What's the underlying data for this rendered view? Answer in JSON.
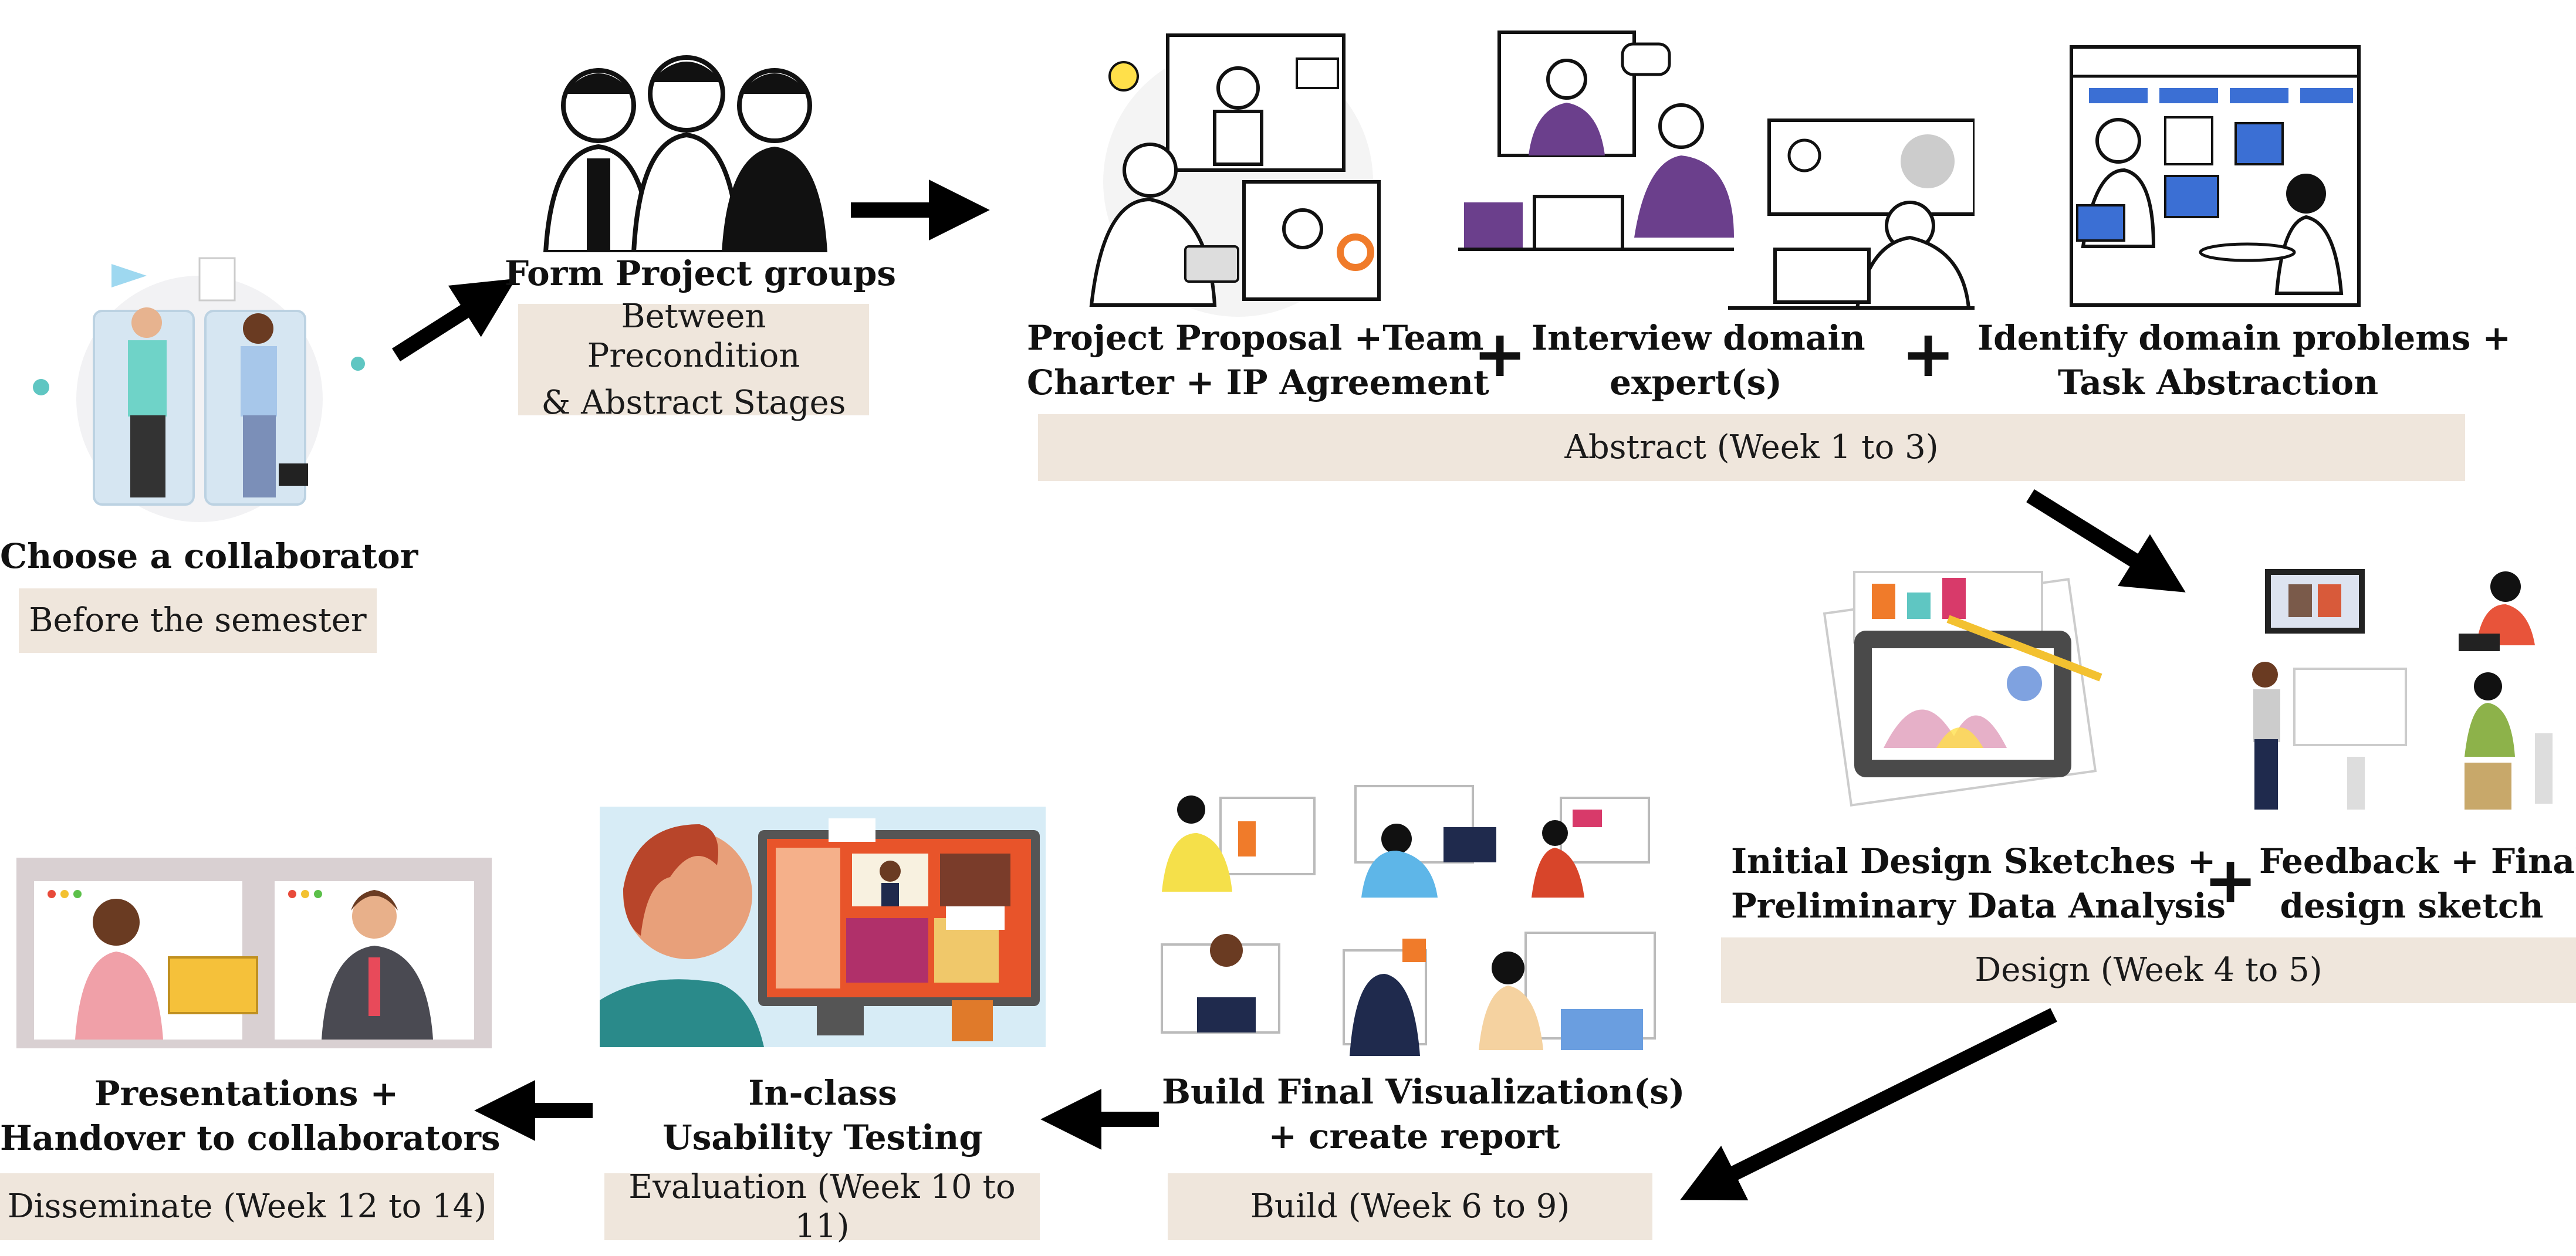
{
  "stages": {
    "collaborator": {
      "title": "Choose a collaborator",
      "band": "Before the semester"
    },
    "groups": {
      "title": "Form Project groups",
      "band_line1": "Between Precondition",
      "band_line2": "& Abstract Stages"
    },
    "abstract": {
      "proposal_line1": "Project Proposal +Team",
      "proposal_line2": "Charter + IP Agreement",
      "interview_line1": "Interview domain",
      "interview_line2": "expert(s)",
      "identify_line1": "Identify domain problems +",
      "identify_line2": "Task Abstraction",
      "band": "Abstract (Week 1 to 3)"
    },
    "design": {
      "sketch_line1": "Initial Design Sketches +",
      "sketch_line2": "Preliminary Data Analysis",
      "feedback_line1": "Feedback + Final",
      "feedback_line2": "design sketch",
      "band": "Design (Week 4 to 5)"
    },
    "build": {
      "title_line1": "Build Final Visualization(s)",
      "title_line2": "+ create report",
      "band": "Build (Week 6 to 9)"
    },
    "evaluation": {
      "title_line1": "In-class",
      "title_line2": "Usability Testing",
      "band": "Evaluation (Week 10 to 11)"
    },
    "disseminate": {
      "title_line1": "Presentations +",
      "title_line2": "Handover to collaborators",
      "band": "Disseminate (Week 12 to 14)"
    }
  },
  "plus_symbol": "+",
  "colors": {
    "band": "#efe6dc",
    "arrow": "#000000",
    "purple": "#6b3f8c",
    "blue": "#3b6fd4",
    "orange": "#f07b2a",
    "teal": "#5fc6c2"
  }
}
